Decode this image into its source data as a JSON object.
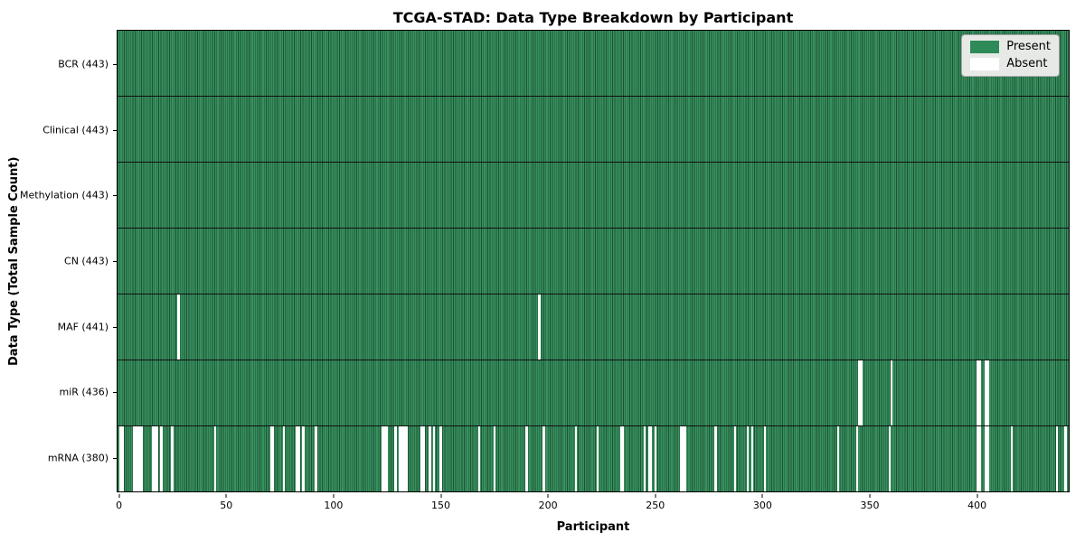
{
  "chart_data": {
    "type": "heatmap",
    "title": "TCGA-STAD: Data Type Breakdown by Participant",
    "xlabel": "Participant",
    "ylabel": "Data Type (Total Sample Count)",
    "n_participants": 443,
    "x_ticks": [
      0,
      50,
      100,
      150,
      200,
      250,
      300,
      350,
      400
    ],
    "legend_position": "upper right",
    "grid": "row dividers only",
    "legend": [
      {
        "label": "Present",
        "color": "#2e8b57"
      },
      {
        "label": "Absent",
        "color": "#ffffff"
      }
    ],
    "rows": [
      {
        "label": "BCR (443)",
        "present_count": 443,
        "absent": []
      },
      {
        "label": "Clinical (443)",
        "present_count": 443,
        "absent": []
      },
      {
        "label": "Methylation (443)",
        "present_count": 443,
        "absent": []
      },
      {
        "label": "CN (443)",
        "present_count": 443,
        "absent": []
      },
      {
        "label": "MAF (441)",
        "present_count": 441,
        "absent": [
          28,
          196
        ]
      },
      {
        "label": "miR (436)",
        "present_count": 436,
        "absent": [
          345,
          346,
          360,
          400,
          401,
          404,
          405
        ]
      },
      {
        "label": "mRNA (380)",
        "present_count": 380,
        "absent": [
          1,
          2,
          7,
          8,
          9,
          10,
          11,
          16,
          17,
          18,
          20,
          25,
          45,
          71,
          72,
          77,
          83,
          84,
          86,
          92,
          123,
          124,
          125,
          129,
          131,
          132,
          133,
          134,
          141,
          142,
          145,
          147,
          150,
          168,
          175,
          190,
          198,
          213,
          223,
          234,
          235,
          245,
          247,
          248,
          250,
          262,
          263,
          264,
          278,
          287,
          293,
          295,
          301,
          335,
          344,
          359,
          400,
          401,
          404,
          405,
          416,
          437,
          441
        ]
      }
    ],
    "colors": {
      "present_fill": "#2e8b57",
      "present_edge": "#1d5334",
      "absent_fill": "#ffffff",
      "row_divider": "#101010",
      "legend_bg": "#e7e9e7",
      "legend_border": "#a6a6a6"
    }
  }
}
